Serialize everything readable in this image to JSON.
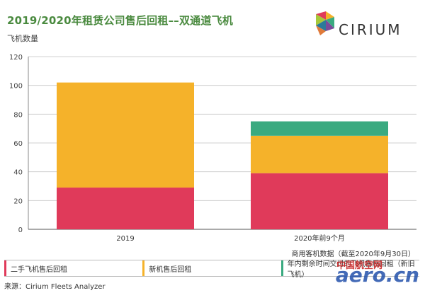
{
  "header": {
    "title": "2019/2020年租赁公司售后回租––双通道飞机",
    "brand": "CIRIUM"
  },
  "note": "商用客机数据（截至2020年9月30日）",
  "footer": {
    "source": "来源：Cirium Fleets Analyzer"
  },
  "watermark": {
    "text": "aero.cn",
    "cn_text": "中国航空网"
  },
  "colors": {
    "title": "#4a8a3f",
    "used": "#e03a5a",
    "new": "#f5b22a",
    "remaining": "#3aaa80",
    "grid": "#d0d0d0"
  },
  "chart_data": {
    "type": "bar",
    "stacked": true,
    "categories": [
      "2019",
      "2020年前9个月"
    ],
    "ylabel": "飞机数量",
    "ylim": [
      0,
      120
    ],
    "yticks": [
      0,
      20,
      40,
      60,
      80,
      100,
      120
    ],
    "grid": true,
    "legend_position": "bottom",
    "series": [
      {
        "name": "二手飞机售后回租",
        "color": "#e03a5a",
        "values": [
          29,
          39
        ]
      },
      {
        "name": "新机售后回租",
        "color": "#f5b22a",
        "values": [
          73,
          26
        ]
      },
      {
        "name": "年内剩余时间交付的飞机售后回租（新旧飞机）",
        "color": "#3aaa80",
        "values": [
          0,
          10
        ]
      }
    ]
  }
}
